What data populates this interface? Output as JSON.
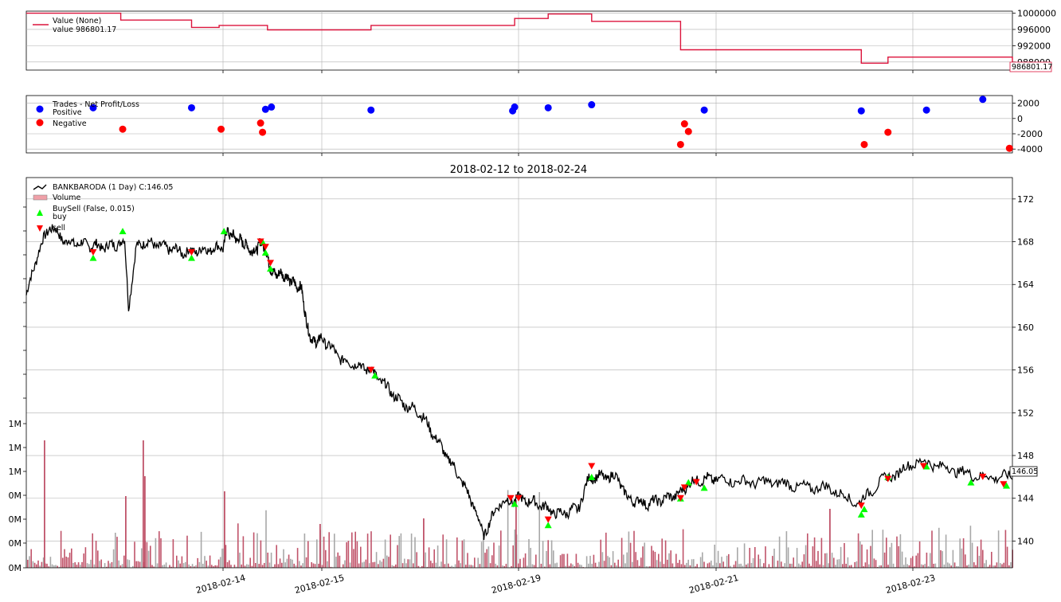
{
  "chart_data": [
    {
      "type": "line",
      "panel": "value",
      "series": [
        {
          "name": "Value (None)",
          "color": "#dc143c",
          "x": [
            "2018-02-12",
            "2018-02-12.5",
            "2018-02-13",
            "2018-02-13.5",
            "2018-02-14",
            "2018-02-14.5",
            "2018-02-15",
            "2018-02-16",
            "2018-02-19",
            "2018-02-20",
            "2018-02-20.5",
            "2018-02-21",
            "2018-02-21.5",
            "2018-02-22",
            "2018-02-23",
            "2018-02-23.5",
            "2018-02-24"
          ],
          "values": [
            1000000,
            998300,
            998300,
            996500,
            997000,
            997000,
            995900,
            995900,
            997000,
            998700,
            999800,
            998000,
            998000,
            991000,
            987700,
            989200,
            986801.17
          ]
        }
      ],
      "legend": [
        "Value (None)",
        "value 986801.17"
      ],
      "last_value_label": "986801.17",
      "y_ticks": [
        "1000000",
        "996000",
        "992000",
        "988000"
      ],
      "ylim": [
        986000,
        1000500
      ],
      "grid": true,
      "legend_placement": "top-left"
    },
    {
      "type": "scatter",
      "panel": "trades",
      "legend": [
        "Trades - Net Profit/Loss",
        "Positive",
        "Negative"
      ],
      "positive_color": "#0000ff",
      "negative_color": "#ff0000",
      "positive": [
        [
          0.34,
          1400
        ],
        [
          0.84,
          1400
        ],
        [
          1.43,
          1200
        ],
        [
          1.49,
          1500
        ],
        [
          2.25,
          1100
        ],
        [
          2.97,
          1000
        ],
        [
          2.98,
          1500
        ],
        [
          3.15,
          1400
        ],
        [
          3.37,
          1800
        ],
        [
          3.94,
          1100
        ],
        [
          4.49,
          1000
        ],
        [
          4.71,
          1100
        ],
        [
          4.9,
          2500
        ]
      ],
      "negative": [
        [
          0.49,
          -1400
        ],
        [
          0.99,
          -1400
        ],
        [
          1.38,
          -600
        ],
        [
          1.4,
          -1800
        ],
        [
          3.82,
          -3400
        ],
        [
          3.84,
          -700
        ],
        [
          3.86,
          -1700
        ],
        [
          4.5,
          -3400
        ],
        [
          4.58,
          -1800
        ],
        [
          4.99,
          -3900
        ]
      ],
      "y_ticks": [
        "2000",
        "0",
        "-2000",
        "-4000"
      ],
      "ylim": [
        -4500,
        3000
      ],
      "grid": true
    },
    {
      "type": "line",
      "panel": "price",
      "title": "2018-02-12 to 2018-02-24",
      "legend": [
        "BANKBARODA (1 Day) C:146.05",
        "Volume",
        "BuySell (False, 0.015)",
        "buy",
        "sell"
      ],
      "series_color": "#000000",
      "buy_color": "#00ff00",
      "sell_color": "#ff0000",
      "last_value_label": "146.05",
      "x_tick_labels": [
        "2018-02-14",
        "2018-02-15",
        "2018-02-19",
        "2018-02-21",
        "2018-02-23"
      ],
      "y_ticks": [
        "172",
        "168",
        "164",
        "160",
        "156",
        "152",
        "148",
        "144",
        "140"
      ],
      "volume_ticks": [
        "1M",
        "1M",
        "1M",
        "0M",
        "0M",
        "0M",
        "0M"
      ],
      "ylim": [
        137.5,
        174
      ],
      "price_anchors": [
        [
          0.0,
          163
        ],
        [
          0.06,
          167
        ],
        [
          0.12,
          169.5
        ],
        [
          0.2,
          168
        ],
        [
          0.4,
          167.5
        ],
        [
          0.5,
          168
        ],
        [
          0.52,
          162
        ],
        [
          0.56,
          167.5
        ],
        [
          0.6,
          168
        ],
        [
          0.8,
          167
        ],
        [
          1.0,
          167.5
        ],
        [
          1.04,
          169
        ],
        [
          1.1,
          168.5
        ],
        [
          1.2,
          168
        ],
        [
          1.3,
          167
        ],
        [
          1.4,
          168
        ],
        [
          1.5,
          165
        ],
        [
          1.6,
          165
        ],
        [
          1.8,
          163.5
        ],
        [
          1.85,
          160
        ],
        [
          1.92,
          158.5
        ],
        [
          2.0,
          159
        ],
        [
          2.1,
          157
        ],
        [
          2.25,
          156
        ],
        [
          2.3,
          155
        ],
        [
          2.4,
          153
        ],
        [
          2.5,
          152
        ],
        [
          2.6,
          149
        ],
        [
          2.7,
          146
        ],
        [
          2.78,
          143
        ],
        [
          2.82,
          140.5
        ],
        [
          2.9,
          143.5
        ],
        [
          3.0,
          144
        ],
        [
          3.1,
          143.5
        ],
        [
          3.2,
          142.5
        ],
        [
          3.3,
          143
        ],
        [
          3.36,
          146
        ],
        [
          3.4,
          146
        ],
        [
          3.5,
          146
        ],
        [
          3.55,
          144
        ],
        [
          3.65,
          143.5
        ],
        [
          3.75,
          144
        ],
        [
          3.82,
          144.5
        ],
        [
          3.87,
          145.5
        ],
        [
          3.94,
          145.8
        ],
        [
          4.0,
          145.8
        ],
        [
          4.1,
          145.5
        ],
        [
          4.2,
          145.5
        ],
        [
          4.3,
          145
        ],
        [
          4.38,
          145
        ],
        [
          4.48,
          143.5
        ],
        [
          4.5,
          144
        ],
        [
          4.55,
          145.5
        ],
        [
          4.62,
          146.5
        ],
        [
          4.68,
          147.5
        ],
        [
          4.76,
          147
        ],
        [
          4.82,
          146.5
        ],
        [
          4.9,
          146
        ],
        [
          4.98,
          146
        ],
        [
          5.0,
          146.05
        ]
      ],
      "buy_markers": [
        [
          0.34,
          166.5
        ],
        [
          0.49,
          169
        ],
        [
          0.84,
          166.5
        ],
        [
          1.01,
          169
        ],
        [
          1.4,
          168
        ],
        [
          1.43,
          167
        ],
        [
          1.48,
          165.5
        ],
        [
          2.27,
          155.5
        ],
        [
          2.98,
          143.5
        ],
        [
          3.15,
          141.5
        ],
        [
          3.37,
          146
        ],
        [
          3.82,
          144
        ],
        [
          3.86,
          145.5
        ],
        [
          3.94,
          145
        ],
        [
          4.49,
          142.5
        ],
        [
          4.5,
          143
        ],
        [
          4.58,
          146
        ],
        [
          4.71,
          147
        ],
        [
          4.86,
          145.5
        ],
        [
          4.98,
          145.2
        ]
      ],
      "sell_markers": [
        [
          0.34,
          167
        ],
        [
          0.84,
          167
        ],
        [
          1.38,
          168
        ],
        [
          1.43,
          167.5
        ],
        [
          1.48,
          166
        ],
        [
          2.25,
          156
        ],
        [
          2.96,
          144
        ],
        [
          3.0,
          144
        ],
        [
          3.15,
          142
        ],
        [
          3.37,
          147
        ],
        [
          3.82,
          144
        ],
        [
          3.84,
          145
        ],
        [
          3.9,
          145.5
        ],
        [
          4.49,
          143.3
        ],
        [
          4.58,
          145.8
        ],
        [
          4.7,
          147
        ],
        [
          4.9,
          146
        ],
        [
          4.97,
          145.3
        ]
      ]
    }
  ]
}
